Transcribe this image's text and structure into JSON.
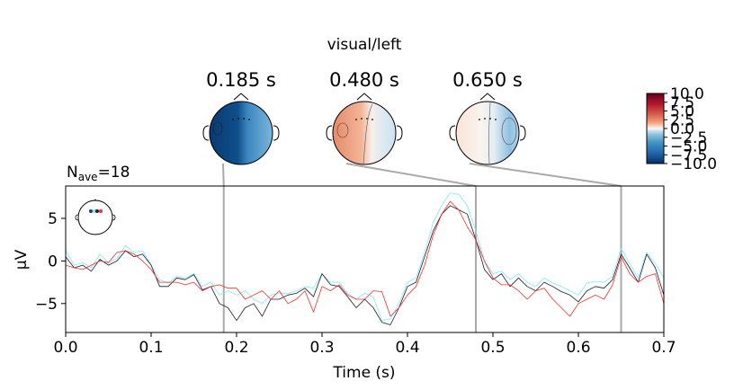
{
  "title": "visual/left",
  "nave": {
    "prefix": "N",
    "sub": "ave",
    "suffix": "=18"
  },
  "topomaps": [
    {
      "time": "0.185 s",
      "t": 0.185
    },
    {
      "time": "0.480 s",
      "t": 0.48
    },
    {
      "time": "0.650 s",
      "t": 0.65
    }
  ],
  "colorbar": {
    "ticks": [
      "10.0",
      "7.5",
      "5.0",
      "2.5",
      "0.0",
      "−2.5",
      "−5.0",
      "−7.5",
      "−10.0"
    ],
    "values": [
      10,
      7.5,
      5,
      2.5,
      0,
      -2.5,
      -5,
      -7.5,
      -10
    ],
    "range": [
      -10,
      10
    ]
  },
  "colors": {
    "line_black": "#1a1a2e",
    "line_cyan": "#7ee8f5",
    "line_red": "#ff2a2a",
    "marker": "#aaaaaa"
  },
  "chart_data": {
    "type": "line",
    "xlabel": "Time (s)",
    "ylabel": "µV",
    "xlim": [
      0.0,
      0.7
    ],
    "ylim": [
      -8.4,
      8.8
    ],
    "xticks": [
      0.0,
      0.1,
      0.2,
      0.3,
      0.4,
      0.5,
      0.6,
      0.7
    ],
    "xtick_labels": [
      "0.0",
      "0.1",
      "0.2",
      "0.3",
      "0.4",
      "0.5",
      "0.6",
      "0.7"
    ],
    "yticks": [
      -5,
      0,
      5
    ],
    "ytick_labels": [
      "−5",
      "0",
      "5"
    ],
    "markers": [
      0.185,
      0.48,
      0.65
    ],
    "series": [
      {
        "color": "#7ee8f5",
        "x": [
          0.0,
          0.01,
          0.02,
          0.03,
          0.04,
          0.05,
          0.06,
          0.07,
          0.08,
          0.09,
          0.1,
          0.11,
          0.12,
          0.13,
          0.14,
          0.15,
          0.16,
          0.17,
          0.18,
          0.19,
          0.2,
          0.21,
          0.22,
          0.23,
          0.24,
          0.25,
          0.26,
          0.27,
          0.28,
          0.29,
          0.3,
          0.31,
          0.32,
          0.33,
          0.34,
          0.35,
          0.36,
          0.37,
          0.38,
          0.39,
          0.4,
          0.41,
          0.42,
          0.43,
          0.44,
          0.45,
          0.46,
          0.47,
          0.48,
          0.49,
          0.5,
          0.51,
          0.52,
          0.53,
          0.54,
          0.55,
          0.56,
          0.57,
          0.58,
          0.59,
          0.6,
          0.61,
          0.62,
          0.63,
          0.64,
          0.65,
          0.66,
          0.67,
          0.68,
          0.69,
          0.7
        ],
        "values": [
          1.2,
          -0.5,
          -0.2,
          -0.8,
          0.8,
          -0.2,
          0.3,
          1.8,
          1.0,
          1.2,
          -0.5,
          -2.2,
          -2.6,
          -1.8,
          -2.0,
          -1.5,
          -3.0,
          -2.5,
          -4.0,
          -3.5,
          -4.0,
          -3.5,
          -4.5,
          -5.0,
          -4.0,
          -3.8,
          -3.8,
          -3.5,
          -3.0,
          -3.2,
          -1.5,
          -2.5,
          -2.5,
          -3.8,
          -4.5,
          -3.8,
          -4.2,
          -7.0,
          -6.8,
          -5.0,
          -2.5,
          -2.0,
          1.0,
          4.5,
          6.5,
          8.0,
          7.8,
          6.5,
          3.5,
          0.0,
          -1.5,
          -1.2,
          -2.2,
          -1.5,
          -2.5,
          -3.0,
          -2.0,
          -2.6,
          -3.0,
          -3.5,
          -4.0,
          -2.6,
          -2.4,
          -2.5,
          -1.8,
          1.5,
          -0.3,
          -2.0,
          1.0,
          -0.3,
          -2.0
        ]
      },
      {
        "color": "#1a1a2e",
        "x": [
          0.0,
          0.01,
          0.02,
          0.03,
          0.04,
          0.05,
          0.06,
          0.07,
          0.08,
          0.09,
          0.1,
          0.11,
          0.12,
          0.13,
          0.14,
          0.15,
          0.16,
          0.17,
          0.18,
          0.19,
          0.2,
          0.21,
          0.22,
          0.23,
          0.24,
          0.25,
          0.26,
          0.27,
          0.28,
          0.29,
          0.3,
          0.31,
          0.32,
          0.33,
          0.34,
          0.35,
          0.36,
          0.37,
          0.38,
          0.39,
          0.4,
          0.41,
          0.42,
          0.43,
          0.44,
          0.45,
          0.46,
          0.47,
          0.48,
          0.49,
          0.5,
          0.51,
          0.52,
          0.53,
          0.54,
          0.55,
          0.56,
          0.57,
          0.58,
          0.59,
          0.6,
          0.61,
          0.62,
          0.63,
          0.64,
          0.65,
          0.66,
          0.67,
          0.68,
          0.69,
          0.7
        ],
        "values": [
          0.5,
          -0.8,
          -0.5,
          -1.2,
          0.2,
          -0.5,
          0.0,
          1.2,
          0.5,
          0.8,
          -0.5,
          -3.0,
          -3.0,
          -2.0,
          -2.2,
          -1.6,
          -3.4,
          -3.0,
          -5.0,
          -5.5,
          -7.0,
          -5.5,
          -5.0,
          -6.5,
          -4.5,
          -4.5,
          -4.0,
          -3.8,
          -3.2,
          -4.2,
          -1.5,
          -2.8,
          -3.0,
          -4.2,
          -5.5,
          -4.5,
          -5.5,
          -7.2,
          -7.5,
          -5.5,
          -3.0,
          -2.5,
          0.5,
          3.5,
          5.5,
          6.5,
          6.0,
          5.5,
          2.5,
          -1.0,
          -2.2,
          -1.5,
          -3.0,
          -2.0,
          -3.0,
          -3.5,
          -2.5,
          -3.0,
          -3.6,
          -4.0,
          -4.8,
          -3.5,
          -3.0,
          -3.2,
          -2.2,
          0.8,
          -0.8,
          -2.5,
          0.8,
          -0.8,
          -4.0
        ]
      },
      {
        "color": "#ff2a2a",
        "x": [
          0.0,
          0.01,
          0.02,
          0.03,
          0.04,
          0.05,
          0.06,
          0.07,
          0.08,
          0.09,
          0.1,
          0.11,
          0.12,
          0.13,
          0.14,
          0.15,
          0.16,
          0.17,
          0.18,
          0.19,
          0.2,
          0.21,
          0.22,
          0.23,
          0.24,
          0.25,
          0.26,
          0.27,
          0.28,
          0.29,
          0.3,
          0.31,
          0.32,
          0.33,
          0.34,
          0.35,
          0.36,
          0.37,
          0.38,
          0.39,
          0.4,
          0.41,
          0.42,
          0.43,
          0.44,
          0.45,
          0.46,
          0.47,
          0.48,
          0.49,
          0.5,
          0.51,
          0.52,
          0.53,
          0.54,
          0.55,
          0.56,
          0.57,
          0.58,
          0.59,
          0.6,
          0.61,
          0.62,
          0.63,
          0.64,
          0.65,
          0.66,
          0.67,
          0.68,
          0.69,
          0.7
        ],
        "values": [
          -0.5,
          -0.8,
          -1.0,
          -0.5,
          0.0,
          -0.2,
          1.0,
          1.2,
          0.8,
          0.0,
          -1.0,
          -2.5,
          -2.5,
          -2.5,
          -2.8,
          -2.5,
          -3.5,
          -3.0,
          -2.8,
          -3.2,
          -3.2,
          -4.5,
          -4.0,
          -3.5,
          -4.5,
          -3.5,
          -5.0,
          -4.5,
          -3.5,
          -6.0,
          -3.0,
          -3.5,
          -2.8,
          -4.0,
          -4.5,
          -4.5,
          -3.5,
          -3.6,
          -6.5,
          -5.5,
          -4.0,
          -3.0,
          -0.5,
          3.0,
          5.5,
          7.0,
          6.0,
          4.0,
          2.5,
          0.0,
          -2.0,
          -2.8,
          -2.8,
          -3.5,
          -4.5,
          -3.5,
          -3.2,
          -4.5,
          -5.5,
          -6.5,
          -5.0,
          -4.5,
          -4.0,
          -4.5,
          -2.8,
          0.5,
          -1.5,
          -2.5,
          -1.8,
          -1.5,
          -5.0
        ]
      }
    ]
  }
}
